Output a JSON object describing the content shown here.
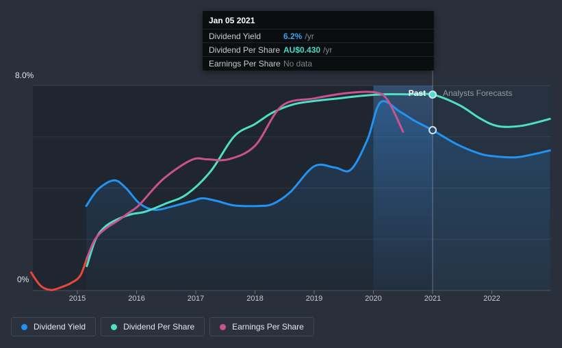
{
  "tooltip": {
    "title": "Jan 05 2021",
    "rows": [
      {
        "label": "Dividend Yield",
        "value": "6.2%",
        "suffix": "/yr",
        "value_color": "#3aa2f2",
        "emphasis": true
      },
      {
        "label": "Dividend Per Share",
        "value": "AU$0.430",
        "suffix": "/yr",
        "value_color": "#47dcc2",
        "emphasis": true
      },
      {
        "label": "Earnings Per Share",
        "value": "No data",
        "suffix": "",
        "value_color": "#7b838b",
        "emphasis": false
      }
    ]
  },
  "annotations": {
    "past_label": "Past",
    "forecast_label": "Analysts Forecasts"
  },
  "legend": [
    {
      "label": "Dividend Yield",
      "color": "#2293f0"
    },
    {
      "label": "Dividend Per Share",
      "color": "#4fe0c3"
    },
    {
      "label": "Earnings Per Share",
      "color": "#c9538f"
    }
  ],
  "chart_data": {
    "type": "line",
    "title": "",
    "xlabel": "",
    "ylabel": "",
    "x_axis": {
      "ticks": [
        2015,
        2016,
        2017,
        2018,
        2019,
        2020,
        2021,
        2022
      ],
      "range": [
        2014.25,
        2023.0
      ]
    },
    "y_axis": {
      "labels": [
        "8.0%",
        "0%"
      ],
      "range": [
        0,
        8
      ],
      "gridline_step": 2,
      "unit": "%"
    },
    "divider_year": 2021,
    "highlight_band": [
      2020,
      2021
    ],
    "legend_position": "bottom",
    "grid": true,
    "note": "Dividend Per Share and Earnings Per Share are overlaid on hidden scales; values below are in plotted y-axis percent units. Tooltip values at 2021-01-05: yield 6.2%/yr, DPS AU$0.430/yr, EPS no data.",
    "series": [
      {
        "id": "earnings-per-share-negative",
        "name": "Earnings Per Share (red segment)",
        "color": "#e7473e",
        "width": 3,
        "points": [
          [
            2014.22,
            0.7
          ],
          [
            2014.38,
            0.18
          ],
          [
            2014.55,
            0.02
          ],
          [
            2014.72,
            0.12
          ],
          [
            2014.9,
            0.3
          ],
          [
            2015.05,
            0.58
          ],
          [
            2015.16,
            1.25
          ]
        ]
      },
      {
        "id": "dividend-yield",
        "name": "Dividend Yield",
        "color": "#2293f0",
        "width": 3,
        "area": true,
        "points": [
          [
            2015.15,
            3.3
          ],
          [
            2015.35,
            3.95
          ],
          [
            2015.62,
            4.3
          ],
          [
            2015.82,
            4.0
          ],
          [
            2016.05,
            3.4
          ],
          [
            2016.3,
            3.15
          ],
          [
            2016.6,
            3.28
          ],
          [
            2016.95,
            3.5
          ],
          [
            2017.12,
            3.6
          ],
          [
            2017.38,
            3.48
          ],
          [
            2017.65,
            3.32
          ],
          [
            2018.05,
            3.3
          ],
          [
            2018.3,
            3.38
          ],
          [
            2018.6,
            3.85
          ],
          [
            2019.0,
            4.85
          ],
          [
            2019.35,
            4.8
          ],
          [
            2019.62,
            4.72
          ],
          [
            2019.9,
            5.9
          ],
          [
            2020.12,
            7.35
          ],
          [
            2020.45,
            6.98
          ],
          [
            2020.7,
            6.62
          ],
          [
            2021.0,
            6.26
          ],
          [
            2021.4,
            5.72
          ],
          [
            2021.75,
            5.38
          ],
          [
            2022.0,
            5.25
          ],
          [
            2022.4,
            5.2
          ],
          [
            2022.7,
            5.32
          ],
          [
            2022.98,
            5.47
          ]
        ]
      },
      {
        "id": "dividend-per-share",
        "name": "Dividend Per Share",
        "color": "#4fe0c3",
        "width": 3,
        "points": [
          [
            2015.16,
            0.95
          ],
          [
            2015.3,
            1.95
          ],
          [
            2015.45,
            2.45
          ],
          [
            2015.65,
            2.75
          ],
          [
            2015.9,
            2.97
          ],
          [
            2016.15,
            3.08
          ],
          [
            2016.5,
            3.4
          ],
          [
            2016.85,
            3.76
          ],
          [
            2017.25,
            4.65
          ],
          [
            2017.65,
            6.02
          ],
          [
            2018.0,
            6.5
          ],
          [
            2018.3,
            6.95
          ],
          [
            2018.65,
            7.27
          ],
          [
            2019.0,
            7.4
          ],
          [
            2019.4,
            7.5
          ],
          [
            2019.8,
            7.6
          ],
          [
            2020.15,
            7.66
          ],
          [
            2020.6,
            7.66
          ],
          [
            2021.0,
            7.65
          ],
          [
            2021.45,
            7.24
          ],
          [
            2021.8,
            6.72
          ],
          [
            2022.1,
            6.42
          ],
          [
            2022.5,
            6.43
          ],
          [
            2022.98,
            6.7
          ]
        ]
      },
      {
        "id": "earnings-per-share",
        "name": "Earnings Per Share",
        "color": "#c9538f",
        "width": 3,
        "points": [
          [
            2015.16,
            1.25
          ],
          [
            2015.3,
            2.0
          ],
          [
            2015.48,
            2.42
          ],
          [
            2015.68,
            2.72
          ],
          [
            2015.88,
            3.05
          ],
          [
            2016.05,
            3.35
          ],
          [
            2016.45,
            4.35
          ],
          [
            2016.93,
            5.1
          ],
          [
            2017.2,
            5.12
          ],
          [
            2017.55,
            5.12
          ],
          [
            2018.0,
            5.65
          ],
          [
            2018.45,
            7.2
          ],
          [
            2019.0,
            7.5
          ],
          [
            2019.6,
            7.72
          ],
          [
            2020.05,
            7.73
          ],
          [
            2020.25,
            7.4
          ],
          [
            2020.5,
            6.2
          ]
        ]
      }
    ],
    "markers": [
      {
        "series": "dividend-per-share",
        "year": 2021,
        "value": 7.65,
        "style": "filled"
      },
      {
        "series": "dividend-yield",
        "year": 2021,
        "value": 6.26,
        "style": "open"
      }
    ],
    "colors": {
      "page_bg": "#2a303b",
      "past_bg": "#20262f",
      "forecast_bg": "#263240",
      "band_top": "rgba(82,146,217,0.38)",
      "band_bottom": "rgba(59,98,155,0.10)",
      "area_top": "rgba(38,132,220,0.28)",
      "area_bottom": "rgba(38,132,220,0.03)",
      "grid": "rgba(255,255,255,0.08)",
      "axis_line": "rgba(255,255,255,0.16)",
      "tick": "rgba(255,255,255,0.30)",
      "divider": "rgba(205,220,238,0.38)",
      "marker_open_fill": "#2c4a6a",
      "marker_ring": "#cde4f8"
    }
  }
}
